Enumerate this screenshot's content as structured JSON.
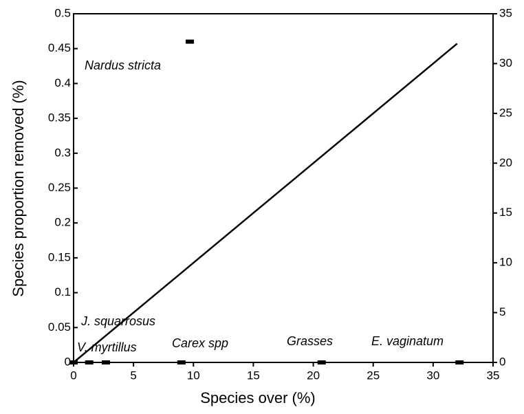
{
  "chart_data": {
    "type": "scatter",
    "xlabel": "Species over (%)",
    "ylabel": "Species proportion removed (%)",
    "x": [
      0,
      1.3,
      2.7,
      9.0,
      20.7,
      32.2,
      9.7
    ],
    "values": [
      0,
      0,
      0,
      0,
      0,
      0,
      0.46
    ],
    "color": "#000000",
    "line": {
      "x": [
        0,
        32
      ],
      "values": [
        0,
        32
      ],
      "axis": "y2",
      "color": "#000000"
    },
    "annotations": [
      "Nardus stricta",
      "J. squarrosus",
      "V. myrtillus",
      "Carex spp",
      "Grasses",
      "E. vaginatum"
    ],
    "xlim": [
      0,
      35
    ],
    "xticks": [
      0,
      5,
      10,
      15,
      20,
      25,
      30,
      35
    ],
    "ylim": [
      0,
      0.5
    ],
    "yticks": [
      0,
      0.05,
      0.1,
      0.15,
      0.2,
      0.25,
      0.3,
      0.35,
      0.4,
      0.45,
      0.5
    ],
    "y2lim": [
      0,
      35
    ],
    "y2ticks": [
      0,
      5,
      10,
      15,
      20,
      25,
      30,
      35
    ],
    "grid": false
  }
}
